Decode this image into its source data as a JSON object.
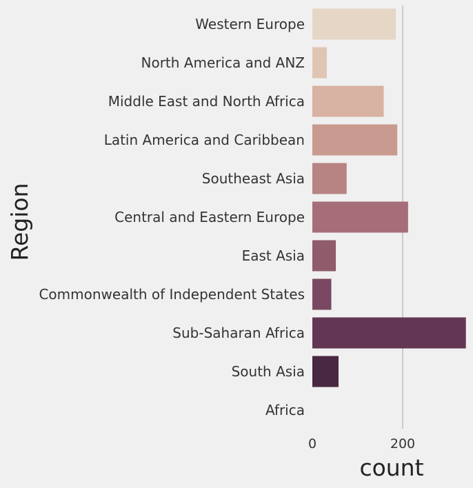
{
  "chart_data": {
    "type": "bar",
    "orientation": "horizontal",
    "categories": [
      "Western Europe",
      "North America and ANZ",
      "Middle East and North Africa",
      "Latin America and Caribbean",
      "Southeast Asia",
      "Central and Eastern Europe",
      "East Asia",
      "Commonwealth of Independent States",
      "Sub-Saharan Africa",
      "South Asia",
      "Africa"
    ],
    "values": [
      185,
      32,
      158,
      188,
      76,
      212,
      52,
      42,
      340,
      58,
      0
    ],
    "colors": [
      "#e5d6c6",
      "#e0c5b4",
      "#d8b2a2",
      "#c99a8f",
      "#b88383",
      "#a66e79",
      "#905b6b",
      "#7a4862",
      "#633653",
      "#482842",
      "#2f1b2f"
    ],
    "xlabel": "count",
    "ylabel": "Region",
    "xticks": [
      0,
      200
    ],
    "xlim": [
      0,
      340
    ],
    "grid": "vertical",
    "background": "#f0f0f0"
  }
}
